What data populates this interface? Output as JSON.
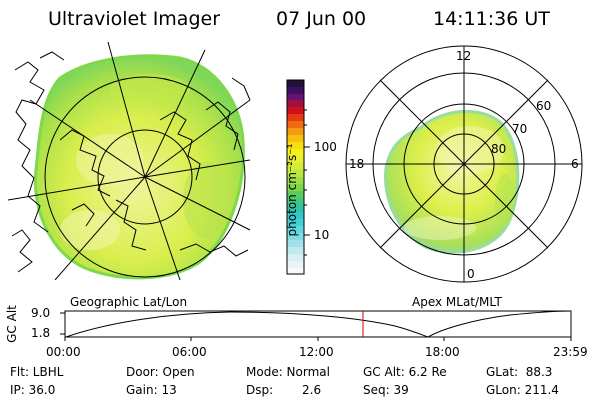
{
  "header": {
    "title": "Ultraviolet Imager",
    "date": "07 Jun 00",
    "time": "14:11:36 UT"
  },
  "colorbar": {
    "unit_label": "photon cm⁻²s⁻¹",
    "ticks": [
      "100",
      "10"
    ]
  },
  "geographic_panel": {
    "caption": "Geographic Lat/Lon"
  },
  "apex_panel": {
    "caption": "Apex MLat/MLT",
    "mlt_labels": [
      "12",
      "18",
      "6",
      "0"
    ],
    "mlat_labels": [
      "60",
      "70",
      "80"
    ]
  },
  "altitude_plot": {
    "ylabel": "GC Alt",
    "yticks": [
      "9.0",
      "1.8"
    ],
    "xticks": [
      "00:00",
      "06:00",
      "12:00",
      "18:00",
      "23:59"
    ],
    "marker_time": "14:11"
  },
  "footer": {
    "filter": "Flt: LBHL",
    "ip": "IP: 36.0",
    "door": "Door: Open",
    "gain": "Gain: 13",
    "mode": "Mode: Normal",
    "dsp_label": "Dsp:",
    "dsp_value": "2.6",
    "gc_alt": "GC Alt: 6.2 Re",
    "seq": "Seq: 39",
    "glat": "GLat:  88.3",
    "glon": "GLon: 211.4"
  },
  "colors": {
    "aurora_main": "#d8f04a",
    "aurora_green": "#7fd84a",
    "aurora_bright": "#f4f7b8",
    "marker": "#cc0000"
  }
}
